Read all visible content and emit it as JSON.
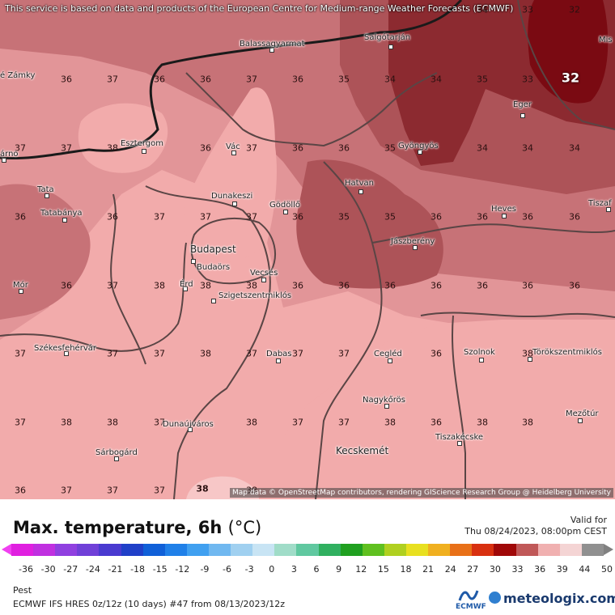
{
  "attribution_top": "This service is based on data and products of the European Centre for Medium-range Weather Forecasts (ECMWF)",
  "attribution_bottom": "Map data © OpenStreetMap contributors, rendering GIScience Research Group @ Heidelberg University",
  "title": "Max. temperature, 6h",
  "title_unit": "(°C)",
  "valid_label": "Valid for",
  "valid_time": "Thu 08/24/2023, 08:00pm CEST",
  "location": "Pest",
  "model_line": "ECMWF IFS HRES 0z/12z (10 days) #47 from  08/13/2023/12z",
  "logo_ecmwf": "ECMWF",
  "logo_meteologix": "meteologix.com",
  "colors": {
    "c32": "#7a0a12",
    "c34": "#8c2a30",
    "c35": "#ad5358",
    "c36": "#c77277",
    "c37": "#e29598",
    "c38": "#f2abab",
    "c39": "#f7c7c7"
  },
  "colorbar": {
    "ticks": [
      "-36",
      "-30",
      "-27",
      "-24",
      "-21",
      "-18",
      "-15",
      "-12",
      "-9",
      "-6",
      "-3",
      "0",
      "3",
      "6",
      "9",
      "12",
      "15",
      "18",
      "21",
      "24",
      "27",
      "30",
      "33",
      "36",
      "39",
      "44",
      "50"
    ],
    "colors": [
      "#e020e0",
      "#c030e0",
      "#9040e0",
      "#7040d8",
      "#4a3ad0",
      "#2040c8",
      "#1060d8",
      "#2080e8",
      "#40a0f0",
      "#70b8f0",
      "#a0d0f0",
      "#c8e4f4",
      "#a0dcc8",
      "#60c8a0",
      "#30b060",
      "#20a020",
      "#60c020",
      "#b0d020",
      "#e8e020",
      "#f0b020",
      "#e87018",
      "#d83010",
      "#a00808",
      "#c05858",
      "#f0b0b0",
      "#f4d4d4",
      "#909090"
    ]
  },
  "temperatures": [
    {
      "v": "34",
      "id": "t-34-a"
    },
    {
      "v": "33",
      "id": "t-33-a"
    },
    {
      "v": "32",
      "id": "t-32-a"
    },
    {
      "v": "36",
      "id": "t-r1-a"
    },
    {
      "v": "37",
      "id": "t-r1-b"
    },
    {
      "v": "36",
      "id": "t-r1-c"
    },
    {
      "v": "37",
      "id": "t-r1-d"
    },
    {
      "v": "36",
      "id": "t-r1-e"
    },
    {
      "v": "35",
      "id": "t-r1-f"
    },
    {
      "v": "34",
      "id": "t-r1-g"
    },
    {
      "v": "34",
      "id": "t-r1-h"
    },
    {
      "v": "35",
      "id": "t-r1-i"
    },
    {
      "v": "33",
      "id": "t-r1-j"
    },
    {
      "v": "32",
      "id": "t-r1-k"
    },
    {
      "v": "37",
      "id": "t-r2-a"
    },
    {
      "v": "37",
      "id": "t-r2-b"
    },
    {
      "v": "38",
      "id": "t-r2-c"
    },
    {
      "v": "36",
      "id": "t-r2-d"
    },
    {
      "v": "37",
      "id": "t-r2-e"
    },
    {
      "v": "36",
      "id": "t-r2-f"
    },
    {
      "v": "36",
      "id": "t-r2-g"
    },
    {
      "v": "35",
      "id": "t-r2-h"
    },
    {
      "v": "34",
      "id": "t-r2-i"
    },
    {
      "v": "34",
      "id": "t-r2-j"
    },
    {
      "v": "34",
      "id": "t-r2-k"
    },
    {
      "v": "36",
      "id": "t-r3-a"
    },
    {
      "v": "36",
      "id": "t-r3-b"
    },
    {
      "v": "37",
      "id": "t-r3-c"
    },
    {
      "v": "37",
      "id": "t-r3-d"
    },
    {
      "v": "37",
      "id": "t-r3-e"
    },
    {
      "v": "36",
      "id": "t-r3-f"
    },
    {
      "v": "35",
      "id": "t-r3-g"
    },
    {
      "v": "35",
      "id": "t-r3-h"
    },
    {
      "v": "36",
      "id": "t-r3-i"
    },
    {
      "v": "36",
      "id": "t-r3-j"
    },
    {
      "v": "36",
      "id": "t-r3-k"
    },
    {
      "v": "36",
      "id": "t-r3-l"
    },
    {
      "v": "36",
      "id": "t-r4-a"
    },
    {
      "v": "37",
      "id": "t-r4-b"
    },
    {
      "v": "38",
      "id": "t-r4-c"
    },
    {
      "v": "38",
      "id": "t-r4-d"
    },
    {
      "v": "38",
      "id": "t-r4-e"
    },
    {
      "v": "36",
      "id": "t-r4-f"
    },
    {
      "v": "36",
      "id": "t-r4-g"
    },
    {
      "v": "36",
      "id": "t-r4-h"
    },
    {
      "v": "36",
      "id": "t-r4-i"
    },
    {
      "v": "36",
      "id": "t-r4-j"
    },
    {
      "v": "36",
      "id": "t-r4-k"
    },
    {
      "v": "36",
      "id": "t-r4-l"
    },
    {
      "v": "37",
      "id": "t-r5-a"
    },
    {
      "v": "37",
      "id": "t-r5-b"
    },
    {
      "v": "37",
      "id": "t-r5-c"
    },
    {
      "v": "38",
      "id": "t-r5-d"
    },
    {
      "v": "37",
      "id": "t-r5-e"
    },
    {
      "v": "37",
      "id": "t-r5-f"
    },
    {
      "v": "37",
      "id": "t-r5-g"
    },
    {
      "v": "37",
      "id": "t-r5-h"
    },
    {
      "v": "36",
      "id": "t-r5-i"
    },
    {
      "v": "36",
      "id": "t-r5-j"
    },
    {
      "v": "38",
      "id": "t-r5-k"
    },
    {
      "v": "37",
      "id": "t-r6-a"
    },
    {
      "v": "38",
      "id": "t-r6-b"
    },
    {
      "v": "38",
      "id": "t-r6-c"
    },
    {
      "v": "37",
      "id": "t-r6-d"
    },
    {
      "v": "37",
      "id": "t-r6-e"
    },
    {
      "v": "38",
      "id": "t-r6-f"
    },
    {
      "v": "37",
      "id": "t-r6-g"
    },
    {
      "v": "37",
      "id": "t-r6-h"
    },
    {
      "v": "38",
      "id": "t-r6-i"
    },
    {
      "v": "36",
      "id": "t-r6-j"
    },
    {
      "v": "38",
      "id": "t-r6-k"
    },
    {
      "v": "38",
      "id": "t-r6-l"
    },
    {
      "v": "38",
      "id": "t-r6-m"
    },
    {
      "v": "36",
      "id": "t-r7-a"
    },
    {
      "v": "37",
      "id": "t-r7-b"
    },
    {
      "v": "37",
      "id": "t-r7-c"
    },
    {
      "v": "37",
      "id": "t-r7-d"
    },
    {
      "v": "38",
      "id": "t-r7-e"
    },
    {
      "v": "38",
      "id": "t-r7-f"
    }
  ],
  "cities": [
    {
      "name": "Balassagyarmat"
    },
    {
      "name": "Salgótarján"
    },
    {
      "name": "Eger"
    },
    {
      "name": "Gyöngyös"
    },
    {
      "name": "Esztergom"
    },
    {
      "name": "Vác"
    },
    {
      "name": "Tata"
    },
    {
      "name": "Tatabánya"
    },
    {
      "name": "Dunakeszi"
    },
    {
      "name": "Gödöllő"
    },
    {
      "name": "Hatvan"
    },
    {
      "name": "Heves"
    },
    {
      "name": "Budapest"
    },
    {
      "name": "Budaörs"
    },
    {
      "name": "Érd"
    },
    {
      "name": "Vecsés"
    },
    {
      "name": "Szigetszentmiklós"
    },
    {
      "name": "Jászberény"
    },
    {
      "name": "Mór"
    },
    {
      "name": "Székesfehérvár"
    },
    {
      "name": "Dabas"
    },
    {
      "name": "Cegléd"
    },
    {
      "name": "Szolnok"
    },
    {
      "name": "Törökszentmiklós"
    },
    {
      "name": "Nagykőrös"
    },
    {
      "name": "Dunaújváros"
    },
    {
      "name": "Kecskemét"
    },
    {
      "name": "Tiszakécske"
    },
    {
      "name": "Sárbogárd"
    },
    {
      "name": "Mezőtúr"
    },
    {
      "name": "é Zámky"
    },
    {
      "name": "árno"
    },
    {
      "name": "Tiszaf"
    },
    {
      "name": "Mis"
    }
  ]
}
